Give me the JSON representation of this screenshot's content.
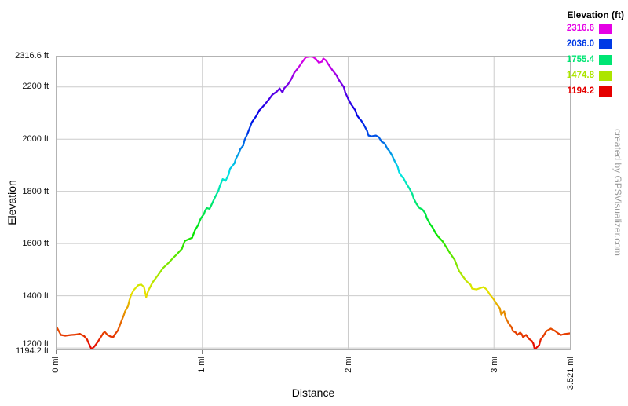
{
  "credit": "created by GPSVisualizer.com",
  "chart_data": {
    "type": "line",
    "title": "",
    "xlabel": "Distance",
    "ylabel": "Elevation",
    "x_unit": "mi",
    "y_unit": "ft",
    "xlim": [
      0,
      3.521
    ],
    "ylim": [
      1194.2,
      2316.6
    ],
    "grid": true,
    "grid_color": "#cccccc",
    "x_gridlines": [
      1,
      2,
      3
    ],
    "y_gridlines": [
      2200,
      2000,
      1800,
      1600,
      1400,
      1200
    ],
    "x_ticks": [
      {
        "value": 0,
        "label": "0 mi"
      },
      {
        "value": 1,
        "label": "1 mi"
      },
      {
        "value": 2,
        "label": "2 mi"
      },
      {
        "value": 3,
        "label": "3 mi"
      },
      {
        "value": 3.521,
        "label": "3.521 mi"
      }
    ],
    "y_ticks": [
      {
        "value": 2316.6,
        "label": "2316.6 ft"
      },
      {
        "value": 2200,
        "label": "2200 ft"
      },
      {
        "value": 2000,
        "label": "2000 ft"
      },
      {
        "value": 1800,
        "label": "1800 ft"
      },
      {
        "value": 1600,
        "label": "1600 ft"
      },
      {
        "value": 1400,
        "label": "1400 ft"
      },
      {
        "value": 1200,
        "label": "1200 ft"
      },
      {
        "value": 1194.2,
        "label": "1194.2 ft"
      }
    ],
    "legend": {
      "title": "Elevation (ft)",
      "position": "top-right",
      "entries": [
        {
          "label": "2316.6",
          "color": "#E500E5"
        },
        {
          "label": "2036.0",
          "color": "#0039E5"
        },
        {
          "label": "1755.4",
          "color": "#00E573"
        },
        {
          "label": "1474.8",
          "color": "#ACE500"
        },
        {
          "label": "1194.2",
          "color": "#E50000"
        }
      ]
    },
    "color_ramp": {
      "maps": "elevation",
      "hue_min": 0,
      "hue_max": 300
    },
    "series": [
      {
        "name": "elevation profile",
        "points_mi_ft": [
          [
            0.0,
            1281
          ],
          [
            0.03,
            1250
          ],
          [
            0.06,
            1247
          ],
          [
            0.1,
            1250
          ],
          [
            0.13,
            1251
          ],
          [
            0.16,
            1254
          ],
          [
            0.19,
            1245
          ],
          [
            0.21,
            1232
          ],
          [
            0.22,
            1219
          ],
          [
            0.24,
            1195
          ],
          [
            0.26,
            1206
          ],
          [
            0.28,
            1221
          ],
          [
            0.3,
            1238
          ],
          [
            0.32,
            1256
          ],
          [
            0.33,
            1262
          ],
          [
            0.35,
            1250
          ],
          [
            0.37,
            1244
          ],
          [
            0.39,
            1242
          ],
          [
            0.4,
            1252
          ],
          [
            0.42,
            1266
          ],
          [
            0.43,
            1281
          ],
          [
            0.45,
            1310
          ],
          [
            0.46,
            1323
          ],
          [
            0.47,
            1340
          ],
          [
            0.49,
            1360
          ],
          [
            0.5,
            1383
          ],
          [
            0.51,
            1401
          ],
          [
            0.53,
            1422
          ],
          [
            0.55,
            1434
          ],
          [
            0.56,
            1440
          ],
          [
            0.58,
            1443
          ],
          [
            0.6,
            1434
          ],
          [
            0.615,
            1395
          ],
          [
            0.63,
            1420
          ],
          [
            0.64,
            1431
          ],
          [
            0.66,
            1452
          ],
          [
            0.7,
            1482
          ],
          [
            0.73,
            1506
          ],
          [
            0.77,
            1527
          ],
          [
            0.8,
            1545
          ],
          [
            0.83,
            1562
          ],
          [
            0.86,
            1580
          ],
          [
            0.88,
            1610
          ],
          [
            0.93,
            1622
          ],
          [
            0.95,
            1652
          ],
          [
            0.97,
            1670
          ],
          [
            0.99,
            1697
          ],
          [
            1.01,
            1712
          ],
          [
            1.02,
            1727
          ],
          [
            1.03,
            1736
          ],
          [
            1.05,
            1733
          ],
          [
            1.07,
            1757
          ],
          [
            1.09,
            1781
          ],
          [
            1.11,
            1802
          ],
          [
            1.12,
            1820
          ],
          [
            1.14,
            1847
          ],
          [
            1.16,
            1841
          ],
          [
            1.18,
            1865
          ],
          [
            1.19,
            1886
          ],
          [
            1.22,
            1907
          ],
          [
            1.23,
            1925
          ],
          [
            1.25,
            1946
          ],
          [
            1.26,
            1961
          ],
          [
            1.28,
            1976
          ],
          [
            1.29,
            1997
          ],
          [
            1.31,
            2021
          ],
          [
            1.34,
            2065
          ],
          [
            1.37,
            2089
          ],
          [
            1.39,
            2110
          ],
          [
            1.43,
            2134
          ],
          [
            1.46,
            2155
          ],
          [
            1.48,
            2170
          ],
          [
            1.51,
            2182
          ],
          [
            1.53,
            2194
          ],
          [
            1.55,
            2179
          ],
          [
            1.56,
            2194
          ],
          [
            1.59,
            2212
          ],
          [
            1.61,
            2230
          ],
          [
            1.63,
            2254
          ],
          [
            1.66,
            2275
          ],
          [
            1.69,
            2299
          ],
          [
            1.71,
            2314
          ],
          [
            1.74,
            2316.6
          ],
          [
            1.76,
            2315
          ],
          [
            1.78,
            2306
          ],
          [
            1.8,
            2293
          ],
          [
            1.82,
            2297
          ],
          [
            1.83,
            2309
          ],
          [
            1.85,
            2301
          ],
          [
            1.86,
            2290
          ],
          [
            1.89,
            2266
          ],
          [
            1.92,
            2245
          ],
          [
            1.94,
            2224
          ],
          [
            1.97,
            2200
          ],
          [
            1.98,
            2179
          ],
          [
            2.0,
            2155
          ],
          [
            2.02,
            2134
          ],
          [
            2.05,
            2110
          ],
          [
            2.06,
            2092
          ],
          [
            2.08,
            2077
          ],
          [
            2.09,
            2071
          ],
          [
            2.11,
            2053
          ],
          [
            2.13,
            2032
          ],
          [
            2.14,
            2014
          ],
          [
            2.16,
            2011
          ],
          [
            2.19,
            2014
          ],
          [
            2.21,
            2008
          ],
          [
            2.23,
            1990
          ],
          [
            2.25,
            1984
          ],
          [
            2.27,
            1963
          ],
          [
            2.28,
            1957
          ],
          [
            2.3,
            1939
          ],
          [
            2.32,
            1915
          ],
          [
            2.34,
            1894
          ],
          [
            2.35,
            1873
          ],
          [
            2.37,
            1856
          ],
          [
            2.38,
            1850
          ],
          [
            2.4,
            1829
          ],
          [
            2.42,
            1811
          ],
          [
            2.44,
            1790
          ],
          [
            2.45,
            1772
          ],
          [
            2.47,
            1751
          ],
          [
            2.49,
            1736
          ],
          [
            2.51,
            1730
          ],
          [
            2.53,
            1715
          ],
          [
            2.54,
            1697
          ],
          [
            2.56,
            1676
          ],
          [
            2.58,
            1661
          ],
          [
            2.6,
            1640
          ],
          [
            2.62,
            1625
          ],
          [
            2.65,
            1607
          ],
          [
            2.68,
            1580
          ],
          [
            2.7,
            1562
          ],
          [
            2.73,
            1538
          ],
          [
            2.76,
            1496
          ],
          [
            2.79,
            1472
          ],
          [
            2.81,
            1457
          ],
          [
            2.84,
            1442
          ],
          [
            2.85,
            1427
          ],
          [
            2.88,
            1424
          ],
          [
            2.91,
            1430
          ],
          [
            2.93,
            1433
          ],
          [
            2.95,
            1424
          ],
          [
            2.97,
            1406
          ],
          [
            3.0,
            1385
          ],
          [
            3.02,
            1367
          ],
          [
            3.04,
            1352
          ],
          [
            3.05,
            1328
          ],
          [
            3.07,
            1340
          ],
          [
            3.08,
            1316
          ],
          [
            3.1,
            1295
          ],
          [
            3.12,
            1280
          ],
          [
            3.13,
            1265
          ],
          [
            3.15,
            1259
          ],
          [
            3.16,
            1250
          ],
          [
            3.18,
            1259
          ],
          [
            3.19,
            1253
          ],
          [
            3.2,
            1241
          ],
          [
            3.22,
            1250
          ],
          [
            3.24,
            1235
          ],
          [
            3.26,
            1226
          ],
          [
            3.27,
            1217
          ],
          [
            3.28,
            1194.2
          ],
          [
            3.31,
            1211
          ],
          [
            3.32,
            1232
          ],
          [
            3.34,
            1247
          ],
          [
            3.36,
            1265
          ],
          [
            3.39,
            1274
          ],
          [
            3.42,
            1265
          ],
          [
            3.44,
            1256
          ],
          [
            3.46,
            1250
          ],
          [
            3.48,
            1253
          ],
          [
            3.521,
            1256
          ]
        ]
      }
    ]
  }
}
